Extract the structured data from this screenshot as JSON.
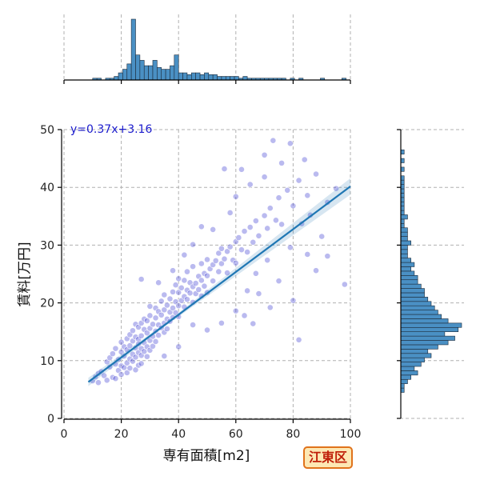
{
  "chart_data": {
    "type": "scatter",
    "xlabel": "専有面積[m2]",
    "ylabel": "賃料[万円]",
    "xlim": [
      0,
      100
    ],
    "ylim": [
      0,
      50
    ],
    "xticks": [
      0,
      20,
      40,
      60,
      80,
      100
    ],
    "yticks": [
      0,
      10,
      20,
      30,
      40,
      50
    ],
    "grid": true,
    "annotation": "y=0.37x+3.16",
    "badge": "江東区",
    "regression": {
      "slope": 0.37,
      "intercept": 3.16,
      "x_range": [
        8.5,
        100
      ]
    },
    "point_color": "#3a3ad0",
    "line_color": "#1f77b4",
    "hist_color": "#4a90c4",
    "scatter_points": [
      [
        10,
        6.5
      ],
      [
        11,
        7.2
      ],
      [
        12,
        7.8
      ],
      [
        12,
        6.2
      ],
      [
        13,
        8.1
      ],
      [
        14,
        7.4
      ],
      [
        15,
        9.8
      ],
      [
        15,
        6.6
      ],
      [
        16,
        8.9
      ],
      [
        16,
        10.5
      ],
      [
        17,
        7.1
      ],
      [
        17,
        11.2
      ],
      [
        18,
        9.4
      ],
      [
        18,
        12.1
      ],
      [
        18,
        6.9
      ],
      [
        19,
        10.2
      ],
      [
        19,
        8.3
      ],
      [
        20,
        11.5
      ],
      [
        20,
        9.1
      ],
      [
        20,
        13.2
      ],
      [
        20,
        7.6
      ],
      [
        21,
        10.8
      ],
      [
        21,
        12.4
      ],
      [
        21,
        8.8
      ],
      [
        22,
        11.9
      ],
      [
        22,
        9.6
      ],
      [
        22,
        13.8
      ],
      [
        22,
        7.9
      ],
      [
        23,
        12.6
      ],
      [
        23,
        10.3
      ],
      [
        23,
        14.5
      ],
      [
        23,
        8.7
      ],
      [
        24,
        11.1
      ],
      [
        24,
        13.4
      ],
      [
        24,
        9.9
      ],
      [
        24,
        15.2
      ],
      [
        25,
        12.2
      ],
      [
        25,
        10.6
      ],
      [
        25,
        14.1
      ],
      [
        25,
        8.4
      ],
      [
        25,
        16.3
      ],
      [
        26,
        11.4
      ],
      [
        26,
        13.7
      ],
      [
        26,
        9.2
      ],
      [
        26,
        15.8
      ],
      [
        26,
        12.9
      ],
      [
        27,
        10.9
      ],
      [
        27,
        14.3
      ],
      [
        27,
        12.1
      ],
      [
        27,
        16.5
      ],
      [
        27,
        9.5
      ],
      [
        28,
        13.1
      ],
      [
        28,
        11.6
      ],
      [
        28,
        15.4
      ],
      [
        28,
        17.2
      ],
      [
        29,
        12.4
      ],
      [
        29,
        14.8
      ],
      [
        29,
        10.7
      ],
      [
        29,
        16.9
      ],
      [
        30,
        13.5
      ],
      [
        30,
        15.6
      ],
      [
        30,
        11.8
      ],
      [
        30,
        17.8
      ],
      [
        30,
        19.4
      ],
      [
        31,
        14.2
      ],
      [
        31,
        16.3
      ],
      [
        31,
        12.5
      ],
      [
        32,
        15.1
      ],
      [
        32,
        17.4
      ],
      [
        32,
        13.3
      ],
      [
        32,
        19.1
      ],
      [
        33,
        16.2
      ],
      [
        33,
        14.4
      ],
      [
        33,
        18.5
      ],
      [
        34,
        15.7
      ],
      [
        34,
        17.9
      ],
      [
        34,
        20.3
      ],
      [
        35,
        16.5
      ],
      [
        35,
        18.8
      ],
      [
        35,
        14.9
      ],
      [
        35,
        21.4
      ],
      [
        36,
        17.2
      ],
      [
        36,
        19.6
      ],
      [
        36,
        15.5
      ],
      [
        37,
        18.4
      ],
      [
        37,
        20.7
      ],
      [
        37,
        16.8
      ],
      [
        38,
        19.1
      ],
      [
        38,
        21.9
      ],
      [
        38,
        17.5
      ],
      [
        39,
        20.2
      ],
      [
        39,
        18.3
      ],
      [
        39,
        23.1
      ],
      [
        40,
        19.5
      ],
      [
        40,
        21.8
      ],
      [
        40,
        17.6
      ],
      [
        40,
        24.2
      ],
      [
        41,
        20.4
      ],
      [
        41,
        22.6
      ],
      [
        42,
        21.1
      ],
      [
        42,
        19.3
      ],
      [
        42,
        23.9
      ],
      [
        43,
        22.2
      ],
      [
        43,
        20.6
      ],
      [
        43,
        25.4
      ],
      [
        44,
        21.7
      ],
      [
        44,
        23.5
      ],
      [
        45,
        22.8
      ],
      [
        45,
        20.1
      ],
      [
        45,
        26.3
      ],
      [
        46,
        23.4
      ],
      [
        46,
        21.6
      ],
      [
        47,
        24.6
      ],
      [
        47,
        22.3
      ],
      [
        48,
        23.9
      ],
      [
        48,
        26.8
      ],
      [
        48,
        21.2
      ],
      [
        49,
        25.1
      ],
      [
        49,
        22.9
      ],
      [
        50,
        24.7
      ],
      [
        50,
        27.5
      ],
      [
        50,
        21.8
      ],
      [
        51,
        25.9
      ],
      [
        52,
        26.6
      ],
      [
        52,
        23.8
      ],
      [
        53,
        27.3
      ],
      [
        54,
        25.4
      ],
      [
        54,
        28.6
      ],
      [
        55,
        26.8
      ],
      [
        55,
        29.4
      ],
      [
        56,
        27.6
      ],
      [
        57,
        28.9
      ],
      [
        57,
        25.2
      ],
      [
        58,
        29.7
      ],
      [
        59,
        27.4
      ],
      [
        60,
        30.6
      ],
      [
        60,
        26.9
      ],
      [
        61,
        31.3
      ],
      [
        62,
        29.2
      ],
      [
        63,
        32.4
      ],
      [
        64,
        28.8
      ],
      [
        65,
        33.1
      ],
      [
        66,
        30.5
      ],
      [
        67,
        34.2
      ],
      [
        68,
        31.6
      ],
      [
        70,
        35.1
      ],
      [
        71,
        32.9
      ],
      [
        72,
        36.4
      ],
      [
        74,
        34.3
      ],
      [
        75,
        38.2
      ],
      [
        76,
        33.6
      ],
      [
        78,
        39.5
      ],
      [
        80,
        36.8
      ],
      [
        82,
        41.2
      ],
      [
        85,
        38.6
      ],
      [
        88,
        42.3
      ],
      [
        92,
        37.4
      ],
      [
        95,
        39.8
      ],
      [
        62,
        43.1
      ],
      [
        70,
        45.6
      ],
      [
        73,
        48.1
      ],
      [
        79,
        47.6
      ],
      [
        56,
        43.2
      ],
      [
        66,
        16.4
      ],
      [
        72,
        19.2
      ],
      [
        80,
        20.4
      ],
      [
        60,
        18.6
      ],
      [
        75,
        23.8
      ],
      [
        68,
        21.6
      ],
      [
        82,
        13.6
      ],
      [
        50,
        15.3
      ],
      [
        45,
        16.2
      ],
      [
        85,
        28.4
      ],
      [
        90,
        31.5
      ],
      [
        88,
        25.6
      ],
      [
        98,
        23.2
      ],
      [
        40,
        12.4
      ],
      [
        35,
        10.8
      ],
      [
        55,
        16.5
      ],
      [
        64,
        22.1
      ],
      [
        79,
        29.6
      ],
      [
        83,
        33.7
      ],
      [
        86,
        35.2
      ],
      [
        92,
        28.1
      ],
      [
        27,
        24.1
      ],
      [
        33,
        23.5
      ],
      [
        38,
        25.6
      ],
      [
        42,
        28.3
      ],
      [
        45,
        30.1
      ],
      [
        48,
        33.2
      ],
      [
        52,
        32.7
      ],
      [
        58,
        35.6
      ],
      [
        60,
        38.4
      ],
      [
        65,
        40.5
      ],
      [
        70,
        41.8
      ],
      [
        76,
        44.2
      ],
      [
        84,
        44.8
      ],
      [
        71,
        27.4
      ],
      [
        67,
        25.1
      ],
      [
        63,
        17.8
      ]
    ],
    "x_hist": {
      "bin_start": 10,
      "bin_width": 1.5,
      "counts": [
        1,
        1,
        0,
        1,
        1,
        2,
        4,
        6,
        9,
        34,
        14,
        11,
        8,
        8,
        11,
        7,
        6,
        6,
        8,
        14,
        4,
        4,
        3,
        4,
        4,
        3,
        4,
        3,
        3,
        2,
        2,
        2,
        2,
        2,
        1,
        2,
        1,
        1,
        1,
        1,
        1,
        1,
        1,
        1,
        1,
        0,
        1,
        0,
        1,
        0,
        0,
        0,
        0,
        1,
        0,
        0,
        0,
        0,
        1
      ]
    },
    "y_hist": {
      "bin_start": 4.5,
      "bin_width": 0.75,
      "counts": [
        1,
        1,
        2,
        3,
        5,
        4,
        6,
        7,
        9,
        8,
        11,
        14,
        16,
        13,
        17,
        18,
        14,
        12,
        11,
        10,
        9,
        8,
        7,
        7,
        6,
        5,
        5,
        4,
        3,
        4,
        3,
        2,
        2,
        2,
        3,
        2,
        2,
        2,
        1,
        1,
        2,
        1,
        1,
        1,
        1,
        1,
        1,
        1,
        1,
        1,
        0,
        1,
        0,
        1,
        0,
        1
      ]
    }
  }
}
